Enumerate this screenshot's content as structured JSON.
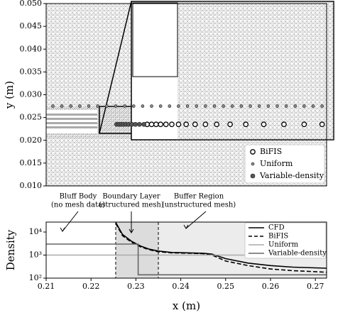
{
  "chart_data": [
    {
      "type": "scatter",
      "ylabel": "y (m)",
      "ylim": [
        0.01,
        0.05
      ],
      "yticks": [
        {
          "value": 0.01,
          "label": "0.010"
        },
        {
          "value": 0.015,
          "label": "0.015"
        },
        {
          "value": 0.02,
          "label": "0.020"
        },
        {
          "value": 0.025,
          "label": "0.025"
        },
        {
          "value": 0.03,
          "label": "0.030"
        },
        {
          "value": 0.035,
          "label": "0.035"
        },
        {
          "value": 0.04,
          "label": "0.040"
        },
        {
          "value": 0.045,
          "label": "0.045"
        },
        {
          "value": 0.05,
          "label": "0.050"
        }
      ],
      "xlim": [
        0.21,
        0.2725
      ],
      "legend": "lower right",
      "series": [
        {
          "name": "BiFIS",
          "color": "#000000",
          "marker": "open",
          "x": [
            0.2325,
            0.2335,
            0.2345,
            0.2355,
            0.2367,
            0.238,
            0.2395,
            0.2412,
            0.2432,
            0.2455,
            0.248,
            0.251,
            0.2545,
            0.2585,
            0.263,
            0.2675,
            0.2715
          ],
          "y": [
            0.0235,
            0.0235,
            0.0235,
            0.0235,
            0.0235,
            0.0235,
            0.0235,
            0.0235,
            0.0235,
            0.0235,
            0.0235,
            0.0235,
            0.0235,
            0.0235,
            0.0235,
            0.0235,
            0.0235
          ]
        },
        {
          "name": "Uniform",
          "color": "#888888",
          "marker": "small",
          "x": [
            0.2115,
            0.2135,
            0.2155,
            0.2175,
            0.2195,
            0.2215,
            0.2235,
            0.2255,
            0.2275,
            0.2295,
            0.2315,
            0.2335,
            0.2355,
            0.2375,
            0.2395,
            0.2415,
            0.2435,
            0.2455,
            0.2475,
            0.2495,
            0.2515,
            0.2535,
            0.2555,
            0.2575,
            0.2595,
            0.2615,
            0.2635,
            0.2655,
            0.2675,
            0.2695,
            0.2715
          ],
          "y": [
            0.0275,
            0.0275,
            0.0275,
            0.0275,
            0.0275,
            0.0275,
            0.0275,
            0.0275,
            0.0275,
            0.0275,
            0.0275,
            0.0275,
            0.0275,
            0.0275,
            0.0275,
            0.0275,
            0.0275,
            0.0275,
            0.0275,
            0.0275,
            0.0275,
            0.0275,
            0.0275,
            0.0275,
            0.0275,
            0.0275,
            0.0275,
            0.0275,
            0.0275,
            0.0275,
            0.0275
          ]
        },
        {
          "name": "Variable-density",
          "color": "#555555",
          "marker": "big",
          "x": [
            0.2257,
            0.2262,
            0.2267,
            0.2272,
            0.2278,
            0.2284,
            0.2291,
            0.2299,
            0.2308,
            0.2318
          ],
          "y": [
            0.0235,
            0.0235,
            0.0235,
            0.0235,
            0.0235,
            0.0235,
            0.0235,
            0.0235,
            0.0235,
            0.0235
          ]
        }
      ]
    },
    {
      "type": "line",
      "xlabel": "x (m)",
      "ylabel": "Density",
      "log_y": true,
      "xlim": [
        0.21,
        0.2725
      ],
      "xticks": [
        0.21,
        0.22,
        0.23,
        0.24,
        0.25,
        0.26,
        0.27
      ],
      "ylim": [
        100,
        27000
      ],
      "yticks": [
        {
          "value": 100,
          "label": "10²"
        },
        {
          "value": 1000,
          "label": "10³"
        },
        {
          "value": 10000,
          "label": "10⁴"
        }
      ],
      "region_bounds": [
        0.2255,
        0.235
      ],
      "legend": "upper right",
      "annotations": [
        [
          "Bluff Body",
          "(no mesh data)"
        ],
        [
          "Boundary Layer",
          "(structured mesh)"
        ],
        [
          "Buffer Region",
          "(unstructured mesh)"
        ]
      ],
      "series": [
        {
          "name": "CFD",
          "color": "#000000",
          "dash": false,
          "x": [
            0.2255,
            0.227,
            0.229,
            0.231,
            0.233,
            0.235,
            0.238,
            0.242,
            0.245,
            0.247,
            0.25,
            0.255,
            0.26,
            0.265,
            0.27,
            0.2725
          ],
          "values": [
            26000,
            8000,
            4000,
            2500,
            1800,
            1500,
            1300,
            1250,
            1200,
            1100,
            700,
            450,
            350,
            300,
            280,
            270
          ]
        },
        {
          "name": "BiFIS",
          "color": "#000000",
          "dash": true,
          "x": [
            0.2255,
            0.227,
            0.229,
            0.231,
            0.233,
            0.235,
            0.238,
            0.242,
            0.245,
            0.247,
            0.25,
            0.255,
            0.26,
            0.265,
            0.27,
            0.2725
          ],
          "values": [
            24000,
            7000,
            3600,
            2300,
            1700,
            1400,
            1250,
            1200,
            1150,
            1000,
            550,
            350,
            250,
            210,
            190,
            180
          ]
        },
        {
          "name": "Uniform",
          "color": "#aaaaaa",
          "dash": false,
          "x": [
            0.21,
            0.2725
          ],
          "values": [
            1000,
            1000
          ]
        },
        {
          "name": "Variable-density",
          "color": "#666666",
          "dash": false,
          "x": [
            0.21,
            0.2305,
            0.2305,
            0.2725
          ],
          "values": [
            3000,
            3000,
            140,
            140
          ]
        }
      ]
    }
  ]
}
